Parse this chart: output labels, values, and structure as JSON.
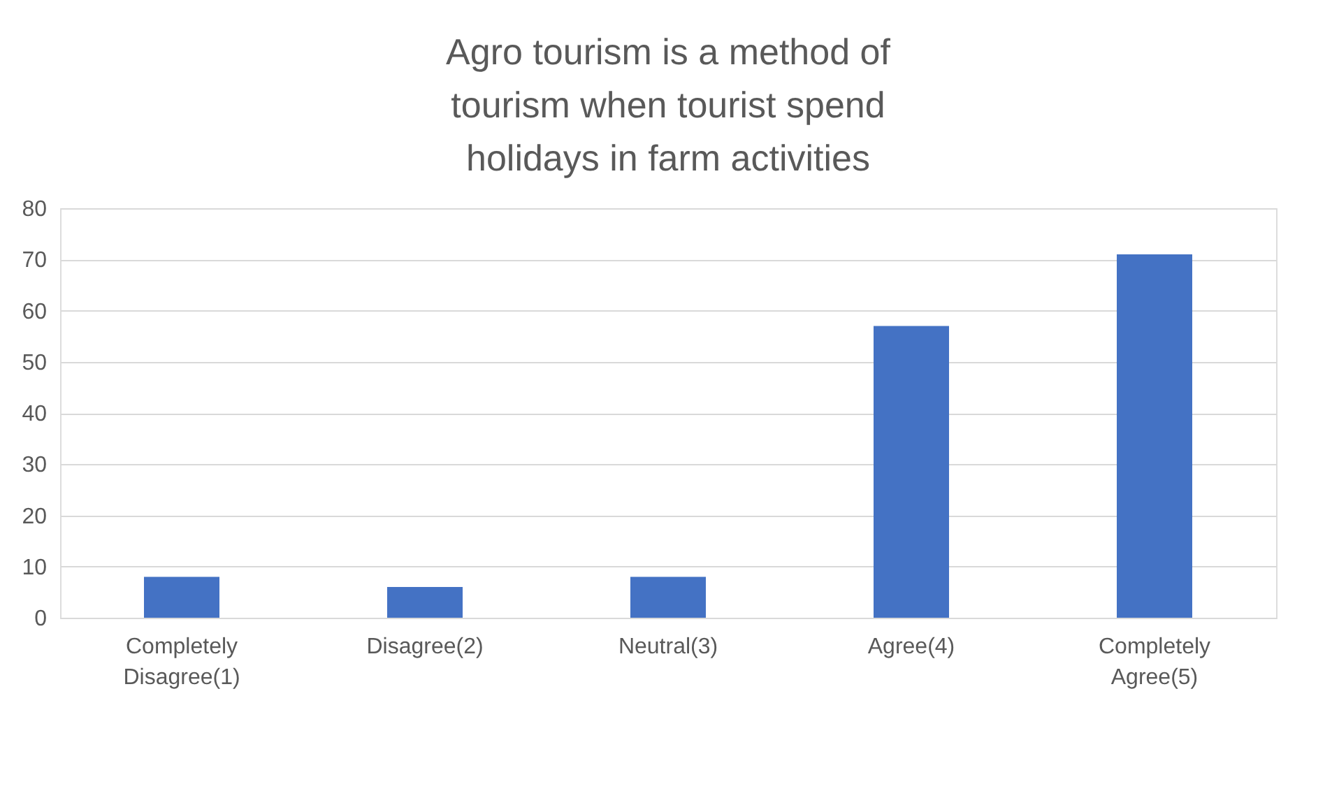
{
  "chart_data": {
    "type": "bar",
    "title": "Agro tourism is a method of tourism when tourist spend holidays in farm activities",
    "categories": [
      "Completely Disagree(1)",
      "Disagree(2)",
      "Neutral(3)",
      "Agree(4)",
      "Completely Agree(5)"
    ],
    "values": [
      8,
      6,
      8,
      57,
      71
    ],
    "color": "#4472c4",
    "ylim": [
      0,
      80
    ],
    "yticks": [
      0,
      10,
      20,
      30,
      40,
      50,
      60,
      70,
      80
    ],
    "grid": "y"
  }
}
